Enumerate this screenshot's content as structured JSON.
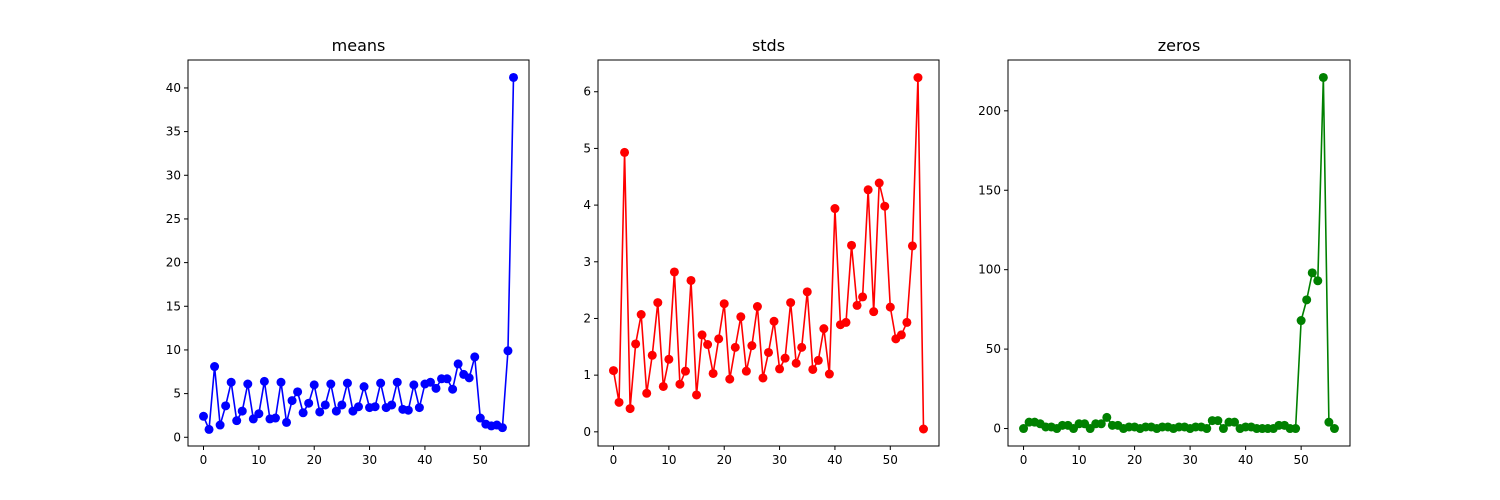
{
  "chart_data": [
    {
      "type": "line",
      "title": "means",
      "color": "#0000ff",
      "marker": "circle",
      "xlim": [
        -2.8,
        58.8
      ],
      "ylim": [
        -1.0,
        43.2
      ],
      "xticks": [
        0,
        10,
        20,
        30,
        40,
        50
      ],
      "yticks": [
        0,
        5,
        10,
        15,
        20,
        25,
        30,
        35,
        40
      ],
      "x": [
        0,
        1,
        2,
        3,
        4,
        5,
        6,
        7,
        8,
        9,
        10,
        11,
        12,
        13,
        14,
        15,
        16,
        17,
        18,
        19,
        20,
        21,
        22,
        23,
        24,
        25,
        26,
        27,
        28,
        29,
        30,
        31,
        32,
        33,
        34,
        35,
        36,
        37,
        38,
        39,
        40,
        41,
        42,
        43,
        44,
        45,
        46,
        47,
        48,
        49,
        50,
        51,
        52,
        53,
        54,
        55,
        56
      ],
      "y": [
        2.4,
        0.9,
        8.1,
        1.4,
        3.6,
        6.3,
        1.9,
        3.0,
        6.1,
        2.1,
        2.7,
        6.4,
        2.1,
        2.2,
        6.3,
        1.7,
        4.2,
        5.2,
        2.8,
        3.9,
        6.0,
        2.9,
        3.7,
        6.1,
        3.0,
        3.7,
        6.2,
        3.0,
        3.5,
        5.8,
        3.4,
        3.5,
        6.2,
        3.4,
        3.7,
        6.3,
        3.2,
        3.1,
        6.0,
        3.4,
        6.1,
        6.3,
        5.6,
        6.7,
        6.7,
        5.5,
        8.4,
        7.2,
        6.8,
        9.2,
        2.2,
        1.5,
        1.3,
        1.4,
        1.1,
        9.9,
        41.2
      ],
      "grid": false
    },
    {
      "type": "line",
      "title": "stds",
      "color": "#ff0000",
      "marker": "circle",
      "xlim": [
        -2.8,
        58.8
      ],
      "ylim": [
        -0.25,
        6.56
      ],
      "xticks": [
        0,
        10,
        20,
        30,
        40,
        50
      ],
      "yticks": [
        0,
        1,
        2,
        3,
        4,
        5,
        6
      ],
      "x": [
        0,
        1,
        2,
        3,
        4,
        5,
        6,
        7,
        8,
        9,
        10,
        11,
        12,
        13,
        14,
        15,
        16,
        17,
        18,
        19,
        20,
        21,
        22,
        23,
        24,
        25,
        26,
        27,
        28,
        29,
        30,
        31,
        32,
        33,
        34,
        35,
        36,
        37,
        38,
        39,
        40,
        41,
        42,
        43,
        44,
        45,
        46,
        47,
        48,
        49,
        50,
        51,
        52,
        53,
        54,
        55,
        56
      ],
      "y": [
        1.08,
        0.52,
        4.93,
        0.41,
        1.55,
        2.07,
        0.68,
        1.35,
        2.28,
        0.8,
        1.28,
        2.82,
        0.84,
        1.07,
        2.67,
        0.65,
        1.71,
        1.54,
        1.03,
        1.64,
        2.26,
        0.93,
        1.49,
        2.03,
        1.07,
        1.52,
        2.21,
        0.95,
        1.4,
        1.95,
        1.11,
        1.3,
        2.28,
        1.21,
        1.49,
        2.47,
        1.1,
        1.26,
        1.82,
        1.02,
        3.94,
        1.89,
        1.93,
        3.29,
        2.23,
        2.38,
        4.27,
        2.12,
        4.39,
        3.98,
        2.2,
        1.64,
        1.71,
        1.93,
        3.28,
        6.25,
        0.05
      ],
      "grid": false
    },
    {
      "type": "line",
      "title": "zeros",
      "color": "#008000",
      "marker": "circle",
      "xlim": [
        -2.8,
        58.8
      ],
      "ylim": [
        -11,
        232
      ],
      "xticks": [
        0,
        10,
        20,
        30,
        40,
        50
      ],
      "yticks": [
        0,
        50,
        100,
        150,
        200
      ],
      "x": [
        0,
        1,
        2,
        3,
        4,
        5,
        6,
        7,
        8,
        9,
        10,
        11,
        12,
        13,
        14,
        15,
        16,
        17,
        18,
        19,
        20,
        21,
        22,
        23,
        24,
        25,
        26,
        27,
        28,
        29,
        30,
        31,
        32,
        33,
        34,
        35,
        36,
        37,
        38,
        39,
        40,
        41,
        42,
        43,
        44,
        45,
        46,
        47,
        48,
        49,
        50,
        51,
        52,
        53,
        54,
        55,
        56
      ],
      "y": [
        0,
        4,
        4,
        3,
        1,
        1,
        0,
        2,
        2,
        0,
        3,
        3,
        0,
        3,
        3,
        7,
        2,
        2,
        0,
        1,
        1,
        0,
        1,
        1,
        0,
        1,
        1,
        0,
        1,
        1,
        0,
        1,
        1,
        0,
        5,
        5,
        0,
        4,
        4,
        0,
        1,
        1,
        0,
        0,
        0,
        0,
        2,
        2,
        0,
        0,
        68,
        81,
        98,
        93,
        221,
        4,
        0
      ],
      "grid": false
    }
  ]
}
